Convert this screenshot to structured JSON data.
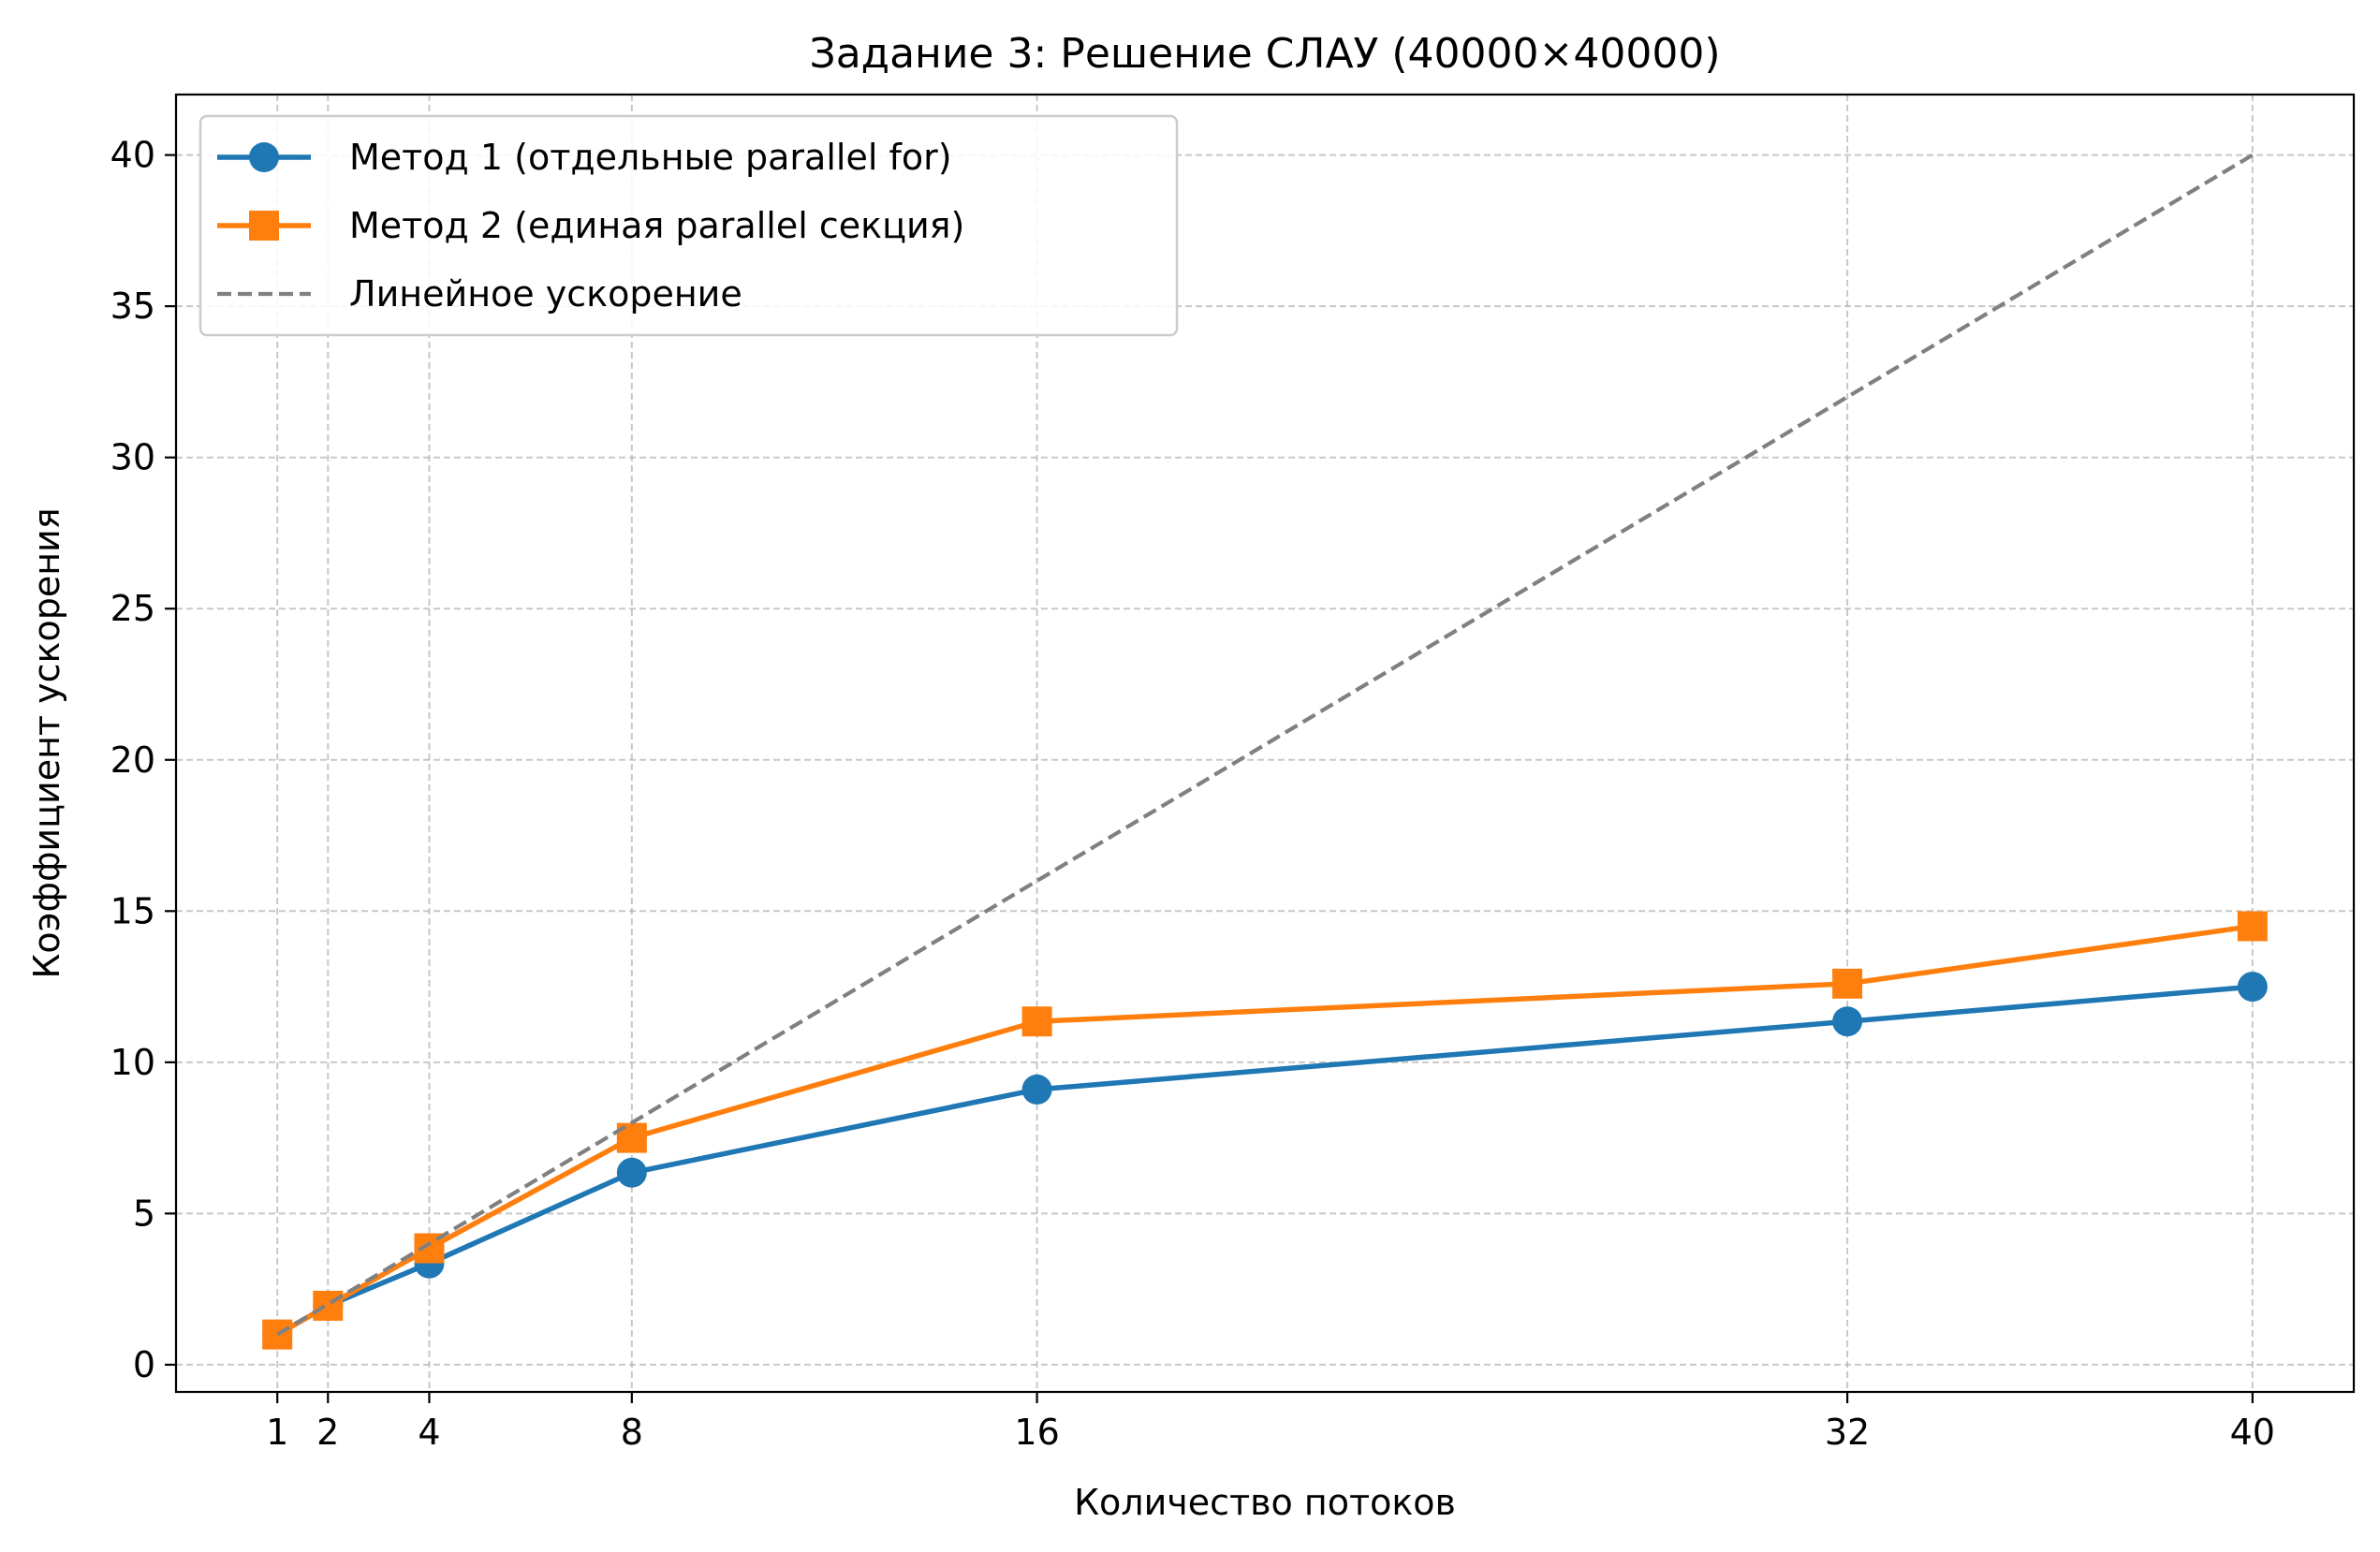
{
  "chart_data": {
    "type": "line",
    "title": "Задание 3: Решение СЛАУ (40000×40000)",
    "xlabel": "Количество потоков",
    "ylabel": "Коэффициент ускорения",
    "x": [
      1,
      2,
      4,
      8,
      16,
      32,
      40
    ],
    "x_tick_labels": [
      "1",
      "2",
      "4",
      "8",
      "16",
      "32",
      "40"
    ],
    "y_ticks": [
      0,
      5,
      10,
      15,
      20,
      25,
      30,
      35,
      40
    ],
    "y_tick_labels": [
      "0",
      "5",
      "10",
      "15",
      "20",
      "25",
      "30",
      "35",
      "40"
    ],
    "xlim": [
      -1,
      42
    ],
    "ylim": [
      -0.9,
      42
    ],
    "grid": true,
    "legend_position": "top-left",
    "series": [
      {
        "name": "Метод 1 (отдельные parallel for)",
        "values": [
          1.0,
          1.95,
          3.35,
          6.35,
          9.1,
          11.35,
          12.5
        ],
        "color": "#1f77b4",
        "marker": "circle",
        "line_style": "solid"
      },
      {
        "name": "Метод 2 (единая parallel секция)",
        "values": [
          1.0,
          1.95,
          3.85,
          7.5,
          11.35,
          12.6,
          14.5
        ],
        "color": "#ff7f0e",
        "marker": "square",
        "line_style": "solid"
      },
      {
        "name": "Линейное ускорение",
        "values": [
          1,
          2,
          4,
          8,
          16,
          32,
          40
        ],
        "color": "#808080",
        "marker": "none",
        "line_style": "dashed"
      }
    ]
  }
}
